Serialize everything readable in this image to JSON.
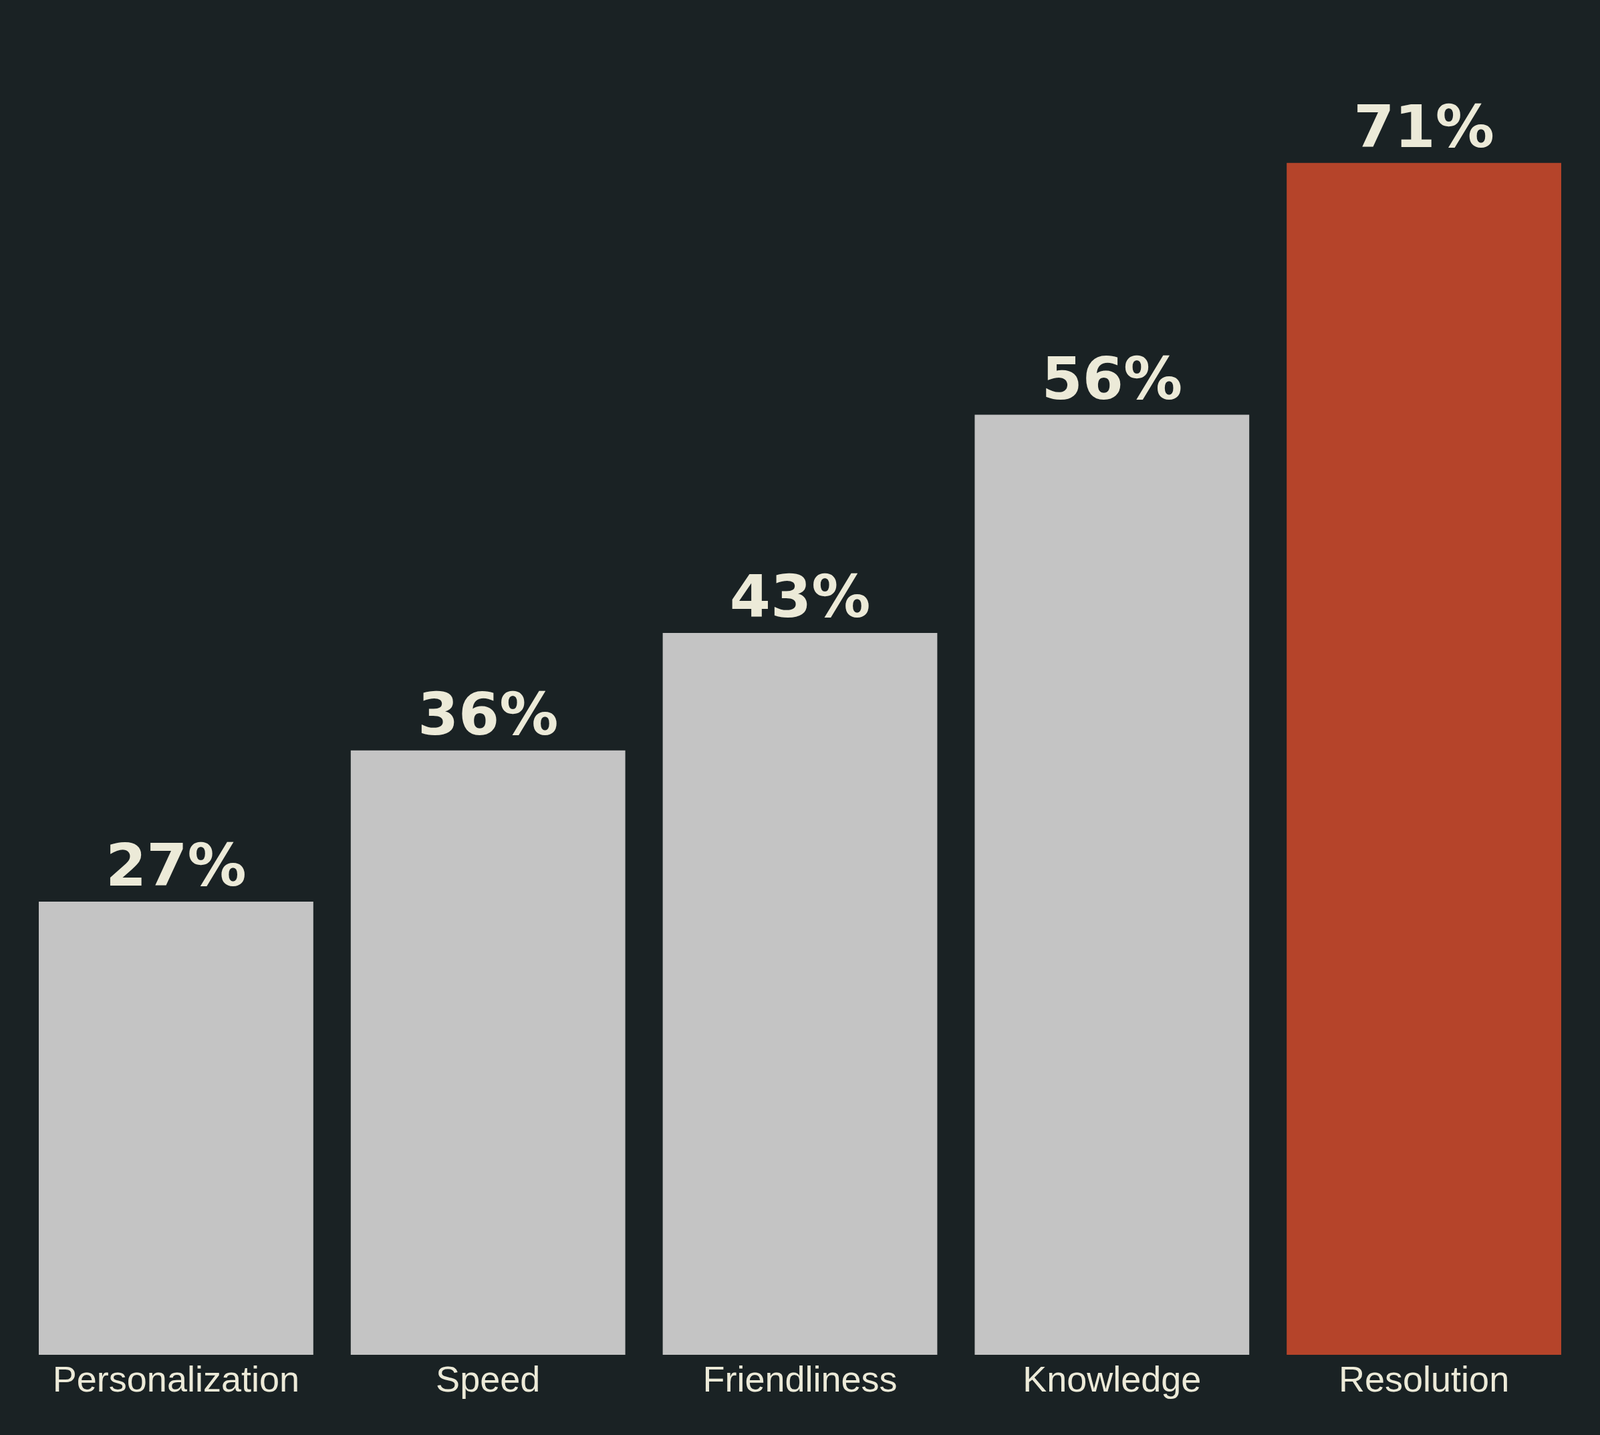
{
  "chart_data": {
    "type": "bar",
    "categories": [
      "Personalization",
      "Speed",
      "Friendliness",
      "Knowledge",
      "Resolution"
    ],
    "values": [
      27,
      36,
      43,
      56,
      71
    ],
    "value_labels": [
      "27%",
      "36%",
      "43%",
      "56%",
      "71%"
    ],
    "colors": [
      "#c4c4c4",
      "#c4c4c4",
      "#c4c4c4",
      "#c4c4c4",
      "#b5442a"
    ],
    "data_labels": true,
    "grid": false,
    "tick_labels": "x"
  }
}
